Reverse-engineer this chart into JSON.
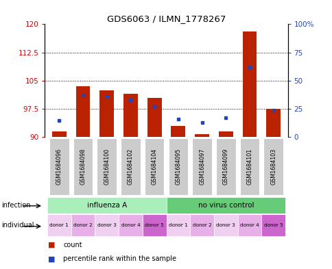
{
  "title": "GDS6063 / ILMN_1778267",
  "samples": [
    "GSM1684096",
    "GSM1684098",
    "GSM1684100",
    "GSM1684102",
    "GSM1684104",
    "GSM1684095",
    "GSM1684097",
    "GSM1684099",
    "GSM1684101",
    "GSM1684103"
  ],
  "count_values": [
    91.5,
    103.5,
    102.5,
    101.5,
    100.5,
    93.0,
    90.8,
    91.5,
    118.0,
    97.5
  ],
  "percentile_values": [
    15,
    37,
    36,
    33,
    27,
    16,
    13,
    17,
    62,
    24
  ],
  "ylim_left": [
    90,
    120
  ],
  "ylim_right": [
    0,
    100
  ],
  "yticks_left": [
    90,
    97.5,
    105,
    112.5,
    120
  ],
  "ytick_labels_left": [
    "90",
    "97.5",
    "105",
    "112.5",
    "120"
  ],
  "yticks_right": [
    0,
    25,
    50,
    75,
    100
  ],
  "ytick_labels_right": [
    "0",
    "25",
    "50",
    "75",
    "100%"
  ],
  "bar_color": "#bb2200",
  "dot_color": "#2244bb",
  "infection_label_color": "#000000",
  "grid_dotted_color": "#555555",
  "bg_color": "#ffffff",
  "plot_bg": "#ffffff",
  "sample_box_color": "#cccccc",
  "infection_color_1": "#aaeebb",
  "infection_color_2": "#66cc77",
  "individual_colors": [
    "#f0d0f0",
    "#e8b0e8",
    "#f0d0f0",
    "#e8b0e8",
    "#cc66cc",
    "#f0d0f0",
    "#e8b0e8",
    "#f0d0f0",
    "#e8b0e8",
    "#cc66cc"
  ],
  "individual_labels": [
    "donor 1",
    "donor 2",
    "donor 3",
    "donor 4",
    "donor 5",
    "donor 1",
    "donor 2",
    "donor 3",
    "donor 4",
    "donor 5"
  ]
}
